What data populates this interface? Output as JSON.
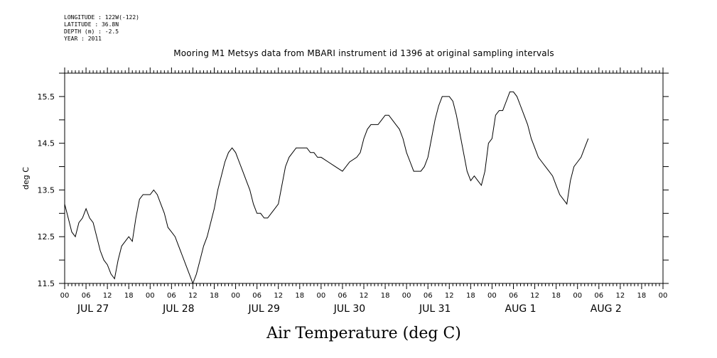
{
  "meta": {
    "longitude": "LONGITUDE : 122W(-122)",
    "latitude": "LATITUDE : 36.8N",
    "depth": "DEPTH (m) : -2.5",
    "year": "YEAR : 2011"
  },
  "chart_data": {
    "type": "line",
    "title": "Mooring M1 Metsys data from MBARI instrument id 1396 at original sampling intervals",
    "xlabel": "Air Temperature (deg C)",
    "ylabel": "deg C",
    "ylim": [
      11.5,
      16.0
    ],
    "xlim_hours": [
      0,
      168
    ],
    "y_tick_labels": [
      "11.5",
      "12.5",
      "13.5",
      "14.5",
      "15.5"
    ],
    "y_tick_values": [
      11.5,
      12.5,
      13.5,
      14.5,
      15.5
    ],
    "hour_tick_labels": [
      "00",
      "06",
      "12",
      "18",
      "00",
      "06",
      "12",
      "18",
      "00",
      "06",
      "12",
      "18",
      "00",
      "06",
      "12",
      "18",
      "00",
      "06",
      "12",
      "18",
      "00",
      "06",
      "12",
      "18",
      "00",
      "06",
      "12",
      "18",
      "00"
    ],
    "day_labels": [
      "JUL 27",
      "JUL 28",
      "JUL 29",
      "JUL 30",
      "JUL 31",
      "AUG  1",
      "AUG  2"
    ],
    "series": [
      {
        "values": [
          [
            0,
            13.2
          ],
          [
            1,
            12.9
          ],
          [
            2,
            12.6
          ],
          [
            3,
            12.5
          ],
          [
            4,
            12.8
          ],
          [
            5,
            12.9
          ],
          [
            6,
            13.1
          ],
          [
            7,
            12.9
          ],
          [
            8,
            12.8
          ],
          [
            9,
            12.5
          ],
          [
            10,
            12.2
          ],
          [
            11,
            12.0
          ],
          [
            12,
            11.9
          ],
          [
            13,
            11.7
          ],
          [
            14,
            11.6
          ],
          [
            15,
            12.0
          ],
          [
            16,
            12.3
          ],
          [
            17,
            12.4
          ],
          [
            18,
            12.5
          ],
          [
            19,
            12.4
          ],
          [
            20,
            12.9
          ],
          [
            21,
            13.3
          ],
          [
            22,
            13.4
          ],
          [
            23,
            13.4
          ],
          [
            24,
            13.4
          ],
          [
            25,
            13.5
          ],
          [
            26,
            13.4
          ],
          [
            27,
            13.2
          ],
          [
            28,
            13.0
          ],
          [
            29,
            12.7
          ],
          [
            30,
            12.6
          ],
          [
            31,
            12.5
          ],
          [
            32,
            12.3
          ],
          [
            33,
            12.1
          ],
          [
            34,
            11.9
          ],
          [
            35,
            11.7
          ],
          [
            36,
            11.5
          ],
          [
            37,
            11.7
          ],
          [
            38,
            12.0
          ],
          [
            39,
            12.3
          ],
          [
            40,
            12.5
          ],
          [
            41,
            12.8
          ],
          [
            42,
            13.1
          ],
          [
            43,
            13.5
          ],
          [
            44,
            13.8
          ],
          [
            45,
            14.1
          ],
          [
            46,
            14.3
          ],
          [
            47,
            14.4
          ],
          [
            48,
            14.3
          ],
          [
            49,
            14.1
          ],
          [
            50,
            13.9
          ],
          [
            51,
            13.7
          ],
          [
            52,
            13.5
          ],
          [
            53,
            13.2
          ],
          [
            54,
            13.0
          ],
          [
            55,
            13.0
          ],
          [
            56,
            12.9
          ],
          [
            57,
            12.9
          ],
          [
            58,
            13.0
          ],
          [
            59,
            13.1
          ],
          [
            60,
            13.2
          ],
          [
            61,
            13.6
          ],
          [
            62,
            14.0
          ],
          [
            63,
            14.2
          ],
          [
            64,
            14.3
          ],
          [
            65,
            14.4
          ],
          [
            66,
            14.4
          ],
          [
            67,
            14.4
          ],
          [
            68,
            14.4
          ],
          [
            69,
            14.3
          ],
          [
            70,
            14.3
          ],
          [
            71,
            14.2
          ],
          [
            72,
            14.2
          ],
          [
            74,
            14.1
          ],
          [
            76,
            14.0
          ],
          [
            78,
            13.9
          ],
          [
            80,
            14.1
          ],
          [
            82,
            14.2
          ],
          [
            83,
            14.3
          ],
          [
            84,
            14.6
          ],
          [
            85,
            14.8
          ],
          [
            86,
            14.9
          ],
          [
            87,
            14.9
          ],
          [
            88,
            14.9
          ],
          [
            89,
            15.0
          ],
          [
            90,
            15.1
          ],
          [
            91,
            15.1
          ],
          [
            92,
            15.0
          ],
          [
            93,
            14.9
          ],
          [
            94,
            14.8
          ],
          [
            95,
            14.6
          ],
          [
            96,
            14.3
          ],
          [
            97,
            14.1
          ],
          [
            98,
            13.9
          ],
          [
            99,
            13.9
          ],
          [
            100,
            13.9
          ],
          [
            101,
            14.0
          ],
          [
            102,
            14.2
          ],
          [
            103,
            14.6
          ],
          [
            104,
            15.0
          ],
          [
            105,
            15.3
          ],
          [
            106,
            15.5
          ],
          [
            107,
            15.5
          ],
          [
            108,
            15.5
          ],
          [
            109,
            15.4
          ],
          [
            110,
            15.1
          ],
          [
            111,
            14.7
          ],
          [
            112,
            14.3
          ],
          [
            113,
            13.9
          ],
          [
            114,
            13.7
          ],
          [
            115,
            13.8
          ],
          [
            116,
            13.7
          ],
          [
            117,
            13.6
          ],
          [
            118,
            13.9
          ],
          [
            119,
            14.5
          ],
          [
            120,
            14.6
          ],
          [
            121,
            15.1
          ],
          [
            122,
            15.2
          ],
          [
            123,
            15.2
          ],
          [
            124,
            15.4
          ],
          [
            125,
            15.6
          ],
          [
            126,
            15.6
          ],
          [
            127,
            15.5
          ],
          [
            128,
            15.3
          ],
          [
            129,
            15.1
          ],
          [
            130,
            14.9
          ],
          [
            131,
            14.6
          ],
          [
            132,
            14.4
          ],
          [
            133,
            14.2
          ],
          [
            134,
            14.1
          ],
          [
            135,
            14.0
          ],
          [
            136,
            13.9
          ],
          [
            137,
            13.8
          ],
          [
            138,
            13.6
          ],
          [
            139,
            13.4
          ],
          [
            140,
            13.3
          ],
          [
            141,
            13.2
          ],
          [
            142,
            13.7
          ],
          [
            143,
            14.0
          ],
          [
            144,
            14.1
          ],
          [
            145,
            14.2
          ],
          [
            146,
            14.4
          ],
          [
            147,
            14.6
          ]
        ]
      }
    ],
    "grid": false
  }
}
